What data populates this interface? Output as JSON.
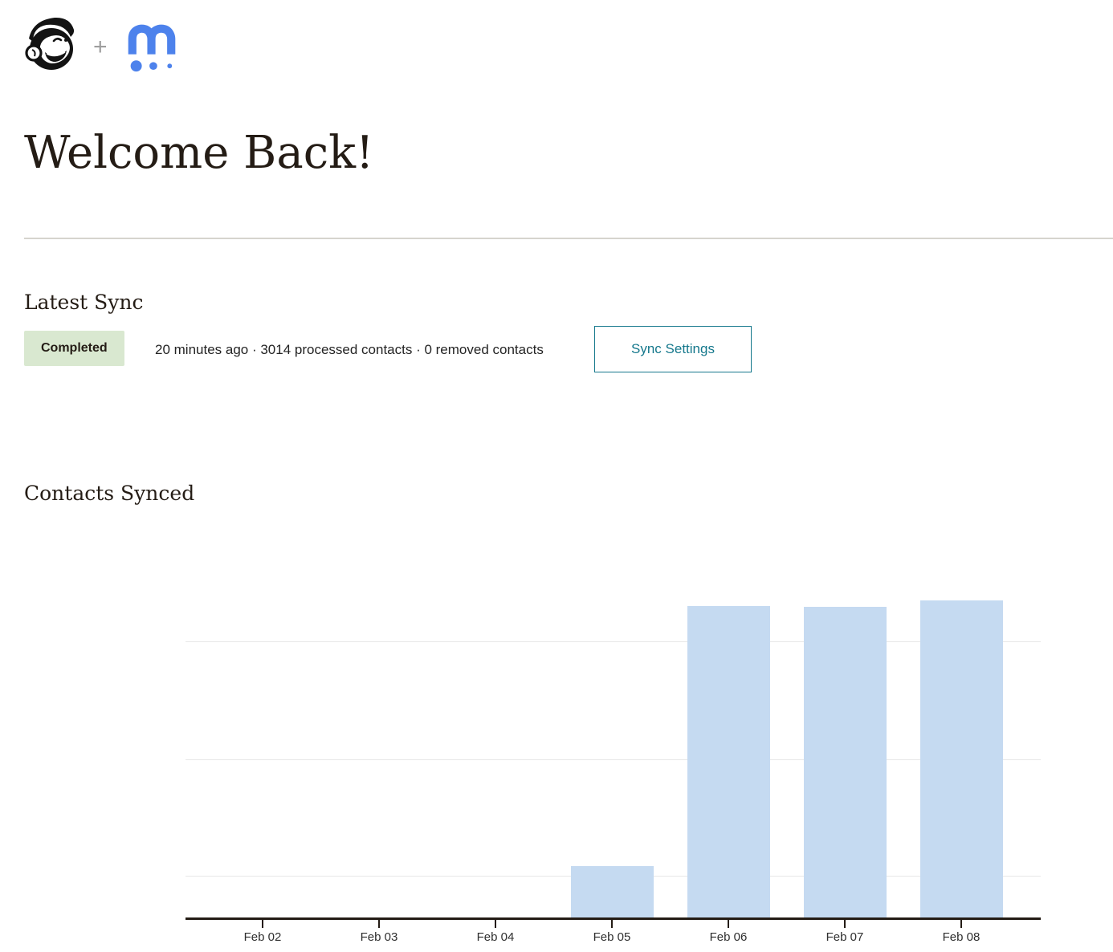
{
  "header": {
    "mailchimp_logo": "mailchimp-freddie-monkey",
    "plus_symbol": "+",
    "partner_logo": "blue-m-with-three-dots"
  },
  "page": {
    "title": "Welcome Back!"
  },
  "latest_sync": {
    "heading": "Latest Sync",
    "status_badge": "Completed",
    "summary": "20 minutes ago · 3014 processed contacts · 0 removed contacts",
    "sync_settings_label": "Sync Settings"
  },
  "chart_section": {
    "heading": "Contacts Synced"
  },
  "chart_data": {
    "type": "bar",
    "title": "Contacts Synced",
    "categories": [
      "Feb 02",
      "Feb 03",
      "Feb 04",
      "Feb 05",
      "Feb 06",
      "Feb 07",
      "Feb 08"
    ],
    "values": [
      0,
      0,
      0,
      490,
      2960,
      2950,
      3015
    ],
    "xlabel": "",
    "ylabel": "",
    "ylim": [
      0,
      3510
    ],
    "y_axis_tick_labels_visible": false,
    "grid": "horizontal",
    "gridlines_frac_from_bottom": [
      0.111,
      0.426,
      0.746
    ],
    "legend": "none",
    "bar_color": "#c5daf1",
    "axis_color": "#241c15",
    "gridline_color": "#e7e7e7"
  },
  "colors": {
    "badge_bg": "#d9e8d0",
    "badge_text": "#241c15",
    "accent_teal": "#15788c",
    "heading_text": "#241c15",
    "body_text": "#242424",
    "divider": "#d6d4ce",
    "logo_blue": "#4d82ec"
  }
}
